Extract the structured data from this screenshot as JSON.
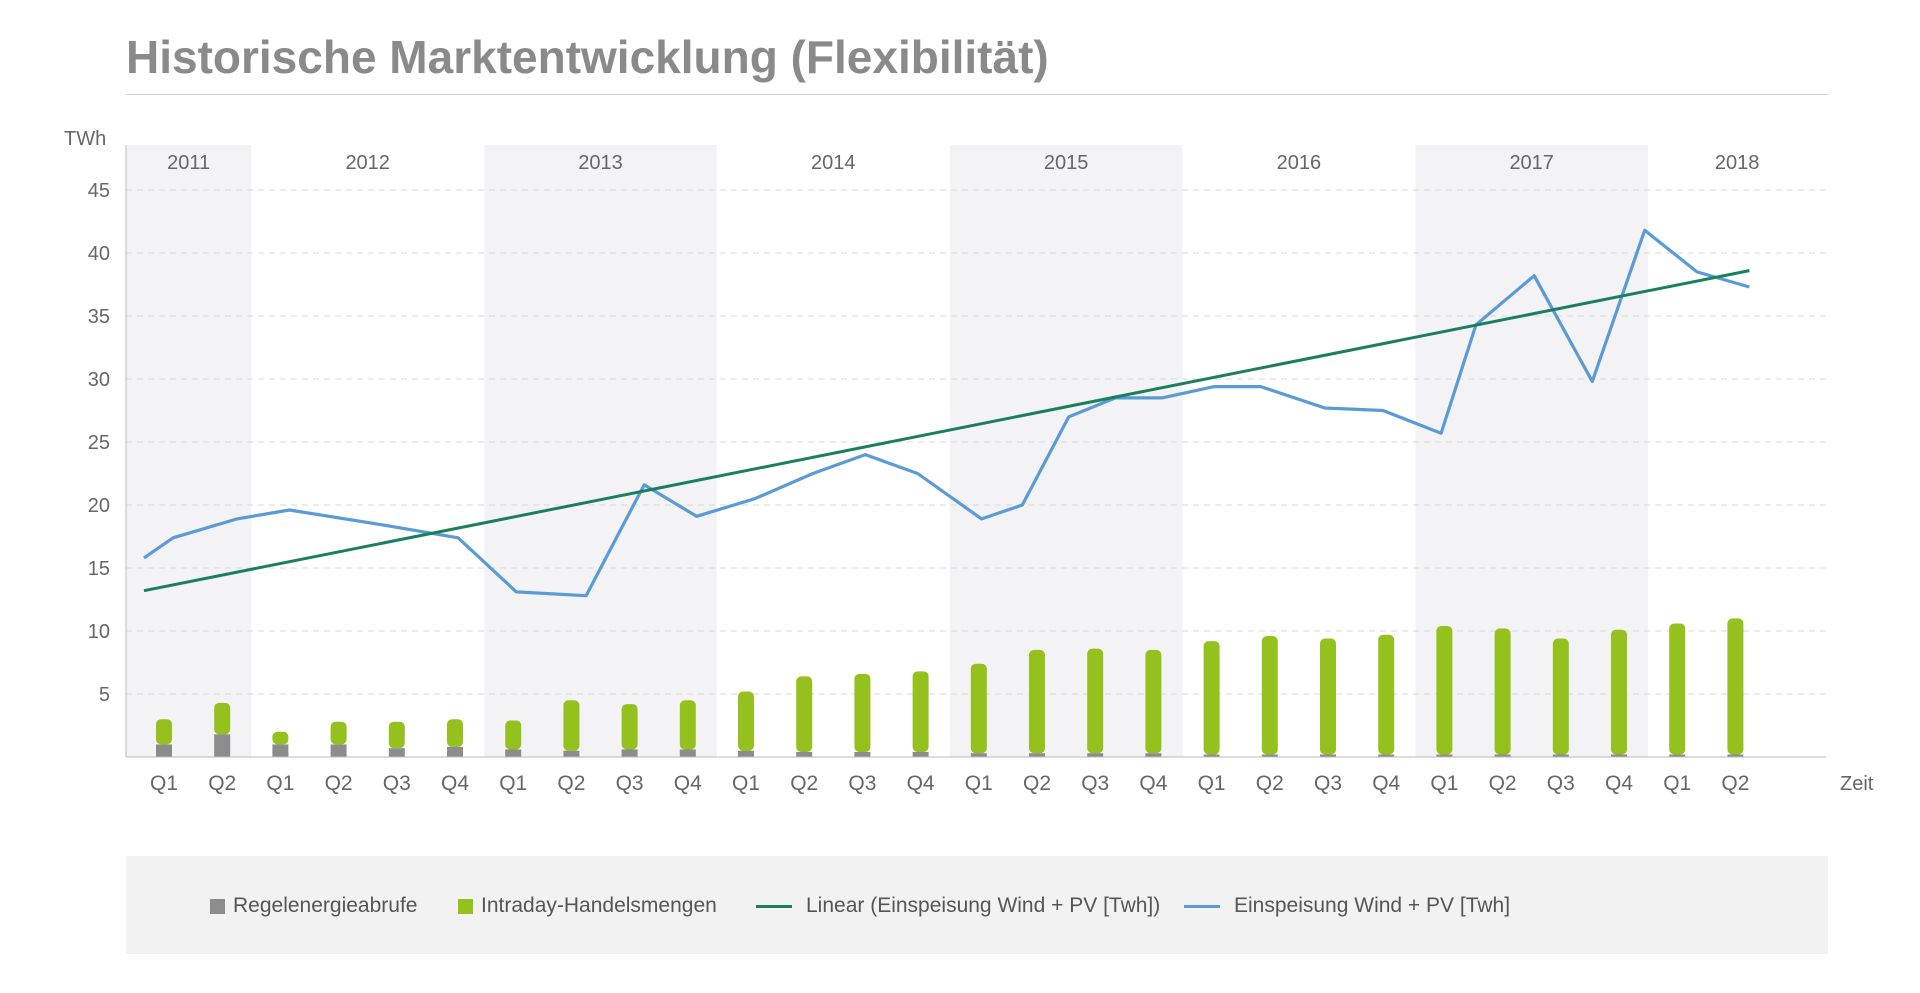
{
  "title": "Historische Marktentwicklung (Flexibilität)",
  "colors": {
    "gray_bar": "#8c8c8c",
    "green_bar": "#95c11f",
    "trend_line": "#1a7f5e",
    "feed_line": "#5b9bd5",
    "band": "#f3f3f5",
    "grid": "#d9d9d9",
    "axis_text": "#666666"
  },
  "legend": {
    "regel": "Regelenergieabrufe",
    "intraday": "Intraday-Handelsmengen",
    "linear": "Linear (Einspeisung Wind + PV [Twh])",
    "einspeisung": "Einspeisung Wind + PV [Twh]"
  },
  "chart_data": {
    "type": "bar",
    "ylabel": "TWh",
    "xlabel": "Zeit",
    "ylim": [
      0,
      48
    ],
    "yticks": [
      5,
      10,
      15,
      20,
      25,
      30,
      35,
      40,
      45
    ],
    "grid": true,
    "legend_position": "bottom",
    "years": [
      {
        "label": "2011",
        "quarters": 2
      },
      {
        "label": "2012",
        "quarters": 4
      },
      {
        "label": "2013",
        "quarters": 4
      },
      {
        "label": "2014",
        "quarters": 4
      },
      {
        "label": "2015",
        "quarters": 4
      },
      {
        "label": "2016",
        "quarters": 4
      },
      {
        "label": "2017",
        "quarters": 4
      },
      {
        "label": "2018",
        "quarters": 2
      }
    ],
    "categories": [
      "Q1",
      "Q2",
      "Q1",
      "Q2",
      "Q3",
      "Q4",
      "Q1",
      "Q2",
      "Q3",
      "Q4",
      "Q1",
      "Q2",
      "Q3",
      "Q4",
      "Q1",
      "Q2",
      "Q3",
      "Q4",
      "Q1",
      "Q2",
      "Q3",
      "Q4",
      "Q1",
      "Q2",
      "Q3",
      "Q4",
      "Q1",
      "Q2"
    ],
    "series": [
      {
        "name": "Regelenergieabrufe",
        "type": "bar",
        "values": [
          1.0,
          1.8,
          1.0,
          1.0,
          0.7,
          0.8,
          0.6,
          0.5,
          0.6,
          0.6,
          0.5,
          0.4,
          0.4,
          0.4,
          0.3,
          0.3,
          0.3,
          0.3,
          0.2,
          0.2,
          0.2,
          0.2,
          0.2,
          0.2,
          0.2,
          0.2,
          0.2,
          0.2
        ]
      },
      {
        "name": "Intraday-Handelsmengen",
        "type": "bar",
        "values": [
          2.0,
          2.5,
          1.0,
          1.8,
          2.1,
          2.2,
          2.3,
          4.0,
          3.6,
          3.9,
          4.7,
          6.0,
          6.2,
          6.4,
          7.1,
          8.2,
          8.3,
          8.2,
          9.0,
          9.4,
          9.2,
          9.5,
          10.2,
          10.0,
          9.2,
          9.9,
          10.4,
          10.8
        ]
      },
      {
        "name": "Einspeisung Wind + PV [Twh]",
        "type": "line",
        "x": [
          0,
          0.5,
          1.6,
          2.5,
          4,
          5.4,
          6.4,
          7.6,
          8.6,
          9.5,
          10.5,
          11.5,
          12.4,
          13.3,
          14.4,
          15.1,
          15.9,
          16.7,
          17.5,
          18.4,
          19.2,
          20.3,
          21.3,
          22.3,
          22.9,
          23.9,
          24.9,
          25.8,
          26.7,
          27.6
        ],
        "y": [
          15.8,
          17.4,
          18.9,
          19.6,
          18.5,
          17.4,
          13.1,
          12.8,
          21.6,
          19.1,
          20.5,
          22.5,
          24.0,
          22.5,
          18.9,
          20.0,
          27.0,
          28.5,
          28.5,
          29.4,
          29.4,
          27.7,
          27.5,
          25.7,
          34.3,
          38.2,
          29.8,
          41.8,
          38.5,
          37.3
        ]
      },
      {
        "name": "Linear (Einspeisung Wind + PV [Twh])",
        "type": "line",
        "x": [
          0,
          27.6
        ],
        "y": [
          13.2,
          38.6
        ]
      }
    ]
  }
}
